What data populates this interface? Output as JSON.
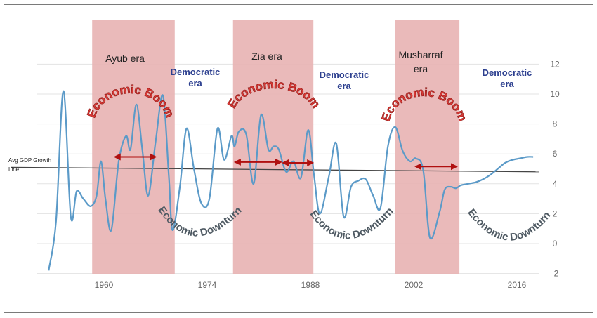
{
  "chart_data": {
    "type": "line",
    "x_ticks": [
      1960,
      1974,
      1988,
      2002,
      2016
    ],
    "y_ticks": [
      -2,
      0,
      2,
      4,
      6,
      8,
      10,
      12
    ],
    "xlim": [
      1952,
      2021
    ],
    "ylim": [
      -2,
      12
    ],
    "grid": "horizontal",
    "avg_label_line1": "Avg GDP Growth",
    "avg_label_line2": "Line",
    "avg_line": {
      "x": [
        1952,
        2019
      ],
      "y": [
        5.1,
        4.8
      ]
    },
    "series": [
      {
        "color": "#5b9ac8",
        "x": [
          1952.5,
          1953.5,
          1954.5,
          1955.5,
          1956.3,
          1957.2,
          1958.2,
          1959.0,
          1959.6,
          1960.2,
          1961.0,
          1962.0,
          1963.0,
          1963.6,
          1964.4,
          1965.2,
          1966.0,
          1967.0,
          1968.0,
          1968.8,
          1969.3,
          1970.3,
          1971.2,
          1972.2,
          1973.2,
          1974.3,
          1975.4,
          1976.3,
          1977.3,
          1977.7,
          1978.3,
          1979.3,
          1980.3,
          1981.3,
          1982.3,
          1983.0,
          1983.7,
          1984.7,
          1985.7,
          1986.7,
          1987.7,
          1988.5,
          1989.3,
          1990.5,
          1991.5,
          1992.5,
          1993.5,
          1994.5,
          1995.5,
          1996.5,
          1997.5,
          1998.5,
          1999.5,
          2000.5,
          2001.5,
          2002.3,
          2003.3,
          2004.2,
          2005.5,
          2006.2,
          2007.0,
          2007.7,
          2008.4,
          2009.4,
          2010.4,
          2011.4,
          2012.4,
          2013.4,
          2014.4,
          2015.4,
          2016.4,
          2017.4,
          2018.2
        ],
        "y": [
          -1.8,
          1.5,
          10.2,
          1.8,
          3.5,
          3.0,
          2.5,
          3.2,
          5.5,
          3.0,
          0.9,
          5.5,
          7.2,
          6.3,
          9.3,
          6.3,
          3.2,
          6.8,
          9.9,
          4.5,
          0.9,
          3.8,
          7.7,
          5.0,
          2.7,
          3.0,
          7.7,
          5.6,
          7.2,
          6.5,
          7.5,
          7.3,
          4.0,
          8.6,
          6.3,
          6.5,
          6.3,
          4.8,
          5.5,
          4.4,
          7.6,
          4.5,
          2.0,
          4.5,
          6.7,
          1.8,
          3.8,
          4.2,
          4.3,
          3.2,
          2.4,
          6.5,
          7.8,
          6.2,
          5.5,
          5.7,
          4.9,
          0.4,
          2.1,
          3.6,
          3.8,
          3.7,
          3.9,
          4.0,
          4.1,
          4.3,
          4.6,
          5.0,
          5.4,
          5.6,
          5.7,
          5.8,
          5.8
        ]
      }
    ],
    "eras": [
      {
        "label": "Ayub era",
        "from": 1958.4,
        "to": 1969.6
      },
      {
        "label": "Zia era",
        "from": 1977.5,
        "to": 1988.4
      },
      {
        "label": "Musharraf era",
        "from": 1999.5,
        "to": 2008.2
      }
    ],
    "democratic_labels": [
      {
        "line1": "Democratic",
        "line2": "era"
      },
      {
        "line1": "Democratic",
        "line2": "era"
      },
      {
        "line1": "Democratic",
        "line2": "era"
      }
    ],
    "boom_label": "Economic Boom",
    "downturn_label": "Economic Downturn",
    "arrows": [
      {
        "from": 1961.5,
        "to": 1967.0,
        "y": 5.8
      },
      {
        "from": 1977.8,
        "to": 1984.0,
        "y": 5.45
      },
      {
        "from": 1984.3,
        "to": 1988.3,
        "y": 5.4
      },
      {
        "from": 2002.3,
        "to": 2007.8,
        "y": 5.15
      }
    ],
    "colors": {
      "line": "#5b9ac8",
      "era_band": "#e8b4b4",
      "arrow": "#b01010",
      "boom": "#d93a36",
      "downturn": "#4f5a63",
      "democratic": "#2c3f8f"
    }
  }
}
